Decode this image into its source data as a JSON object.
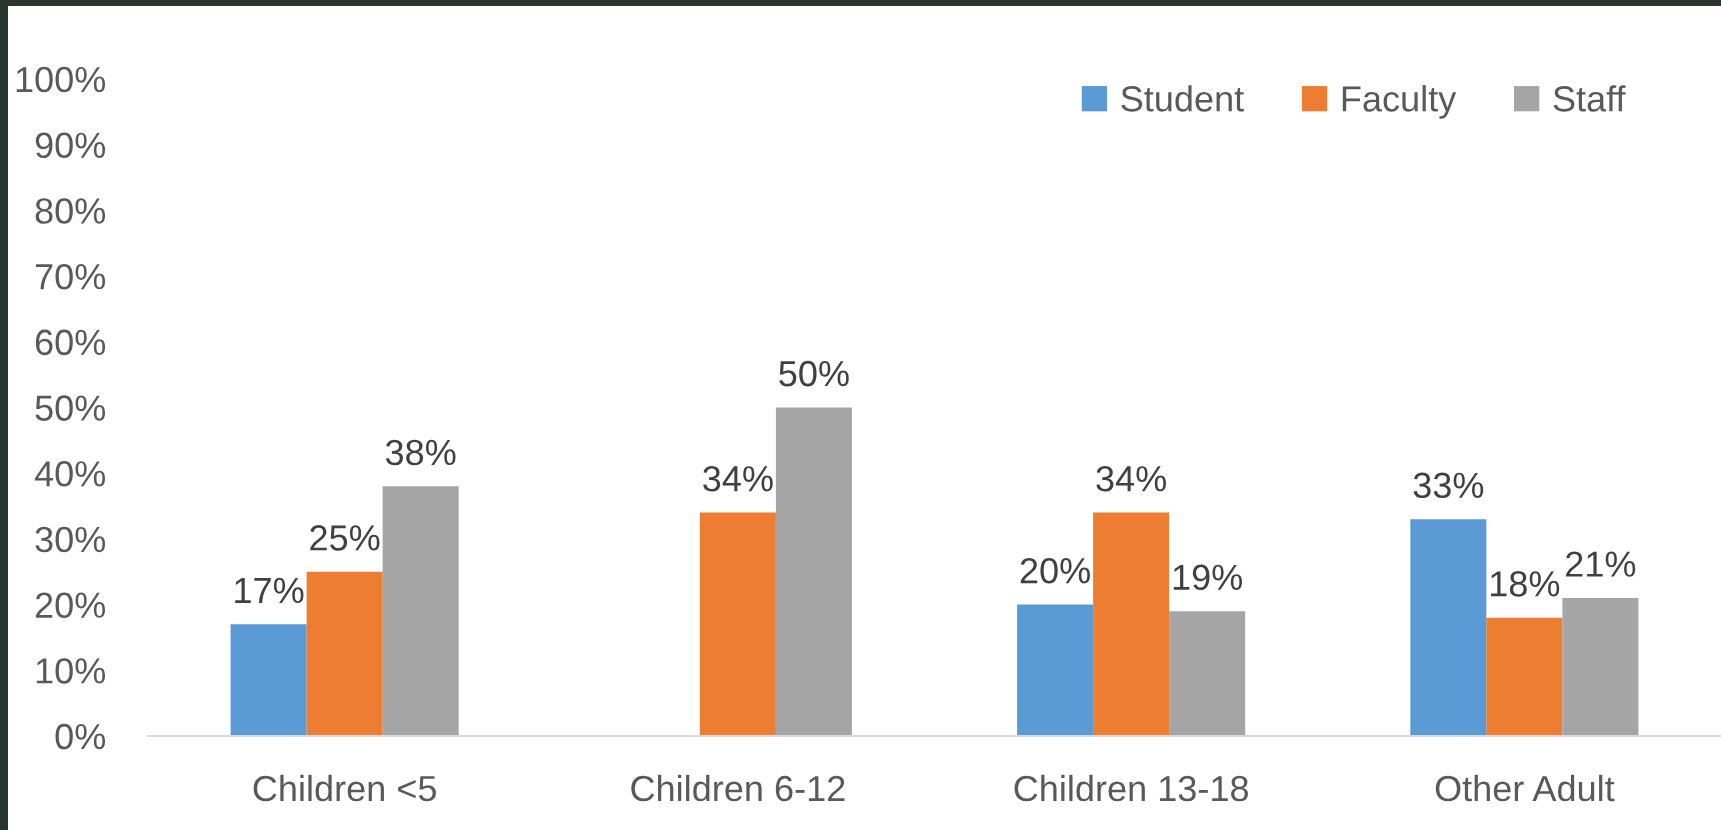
{
  "chart_data": {
    "type": "bar",
    "categories": [
      "Children <5",
      "Children 6-12",
      "Children 13-18",
      "Other Adult"
    ],
    "series": [
      {
        "name": "Student",
        "color": "#5b9bd5",
        "values": [
          17,
          null,
          20,
          33
        ],
        "value_labels": [
          "17%",
          null,
          "20%",
          "33%"
        ]
      },
      {
        "name": "Faculty",
        "color": "#ed7d31",
        "values": [
          25,
          34,
          34,
          18
        ],
        "value_labels": [
          "25%",
          "34%",
          "34%",
          "18%"
        ]
      },
      {
        "name": "Staff",
        "color": "#a5a5a5",
        "values": [
          38,
          50,
          19,
          21
        ],
        "value_labels": [
          "38%",
          "50%",
          "19%",
          "21%"
        ]
      }
    ],
    "ylim": [
      0,
      100
    ],
    "yticks": [
      {
        "value": 0,
        "label": "0%"
      },
      {
        "value": 10,
        "label": "10%"
      },
      {
        "value": 20,
        "label": "20%"
      },
      {
        "value": 30,
        "label": "30%"
      },
      {
        "value": 40,
        "label": "40%"
      },
      {
        "value": 50,
        "label": "50%"
      },
      {
        "value": 60,
        "label": "60%"
      },
      {
        "value": 70,
        "label": "70%"
      },
      {
        "value": 80,
        "label": "80%"
      },
      {
        "value": 90,
        "label": "90%"
      },
      {
        "value": 100,
        "label": "100%"
      }
    ],
    "legend": "top right"
  }
}
